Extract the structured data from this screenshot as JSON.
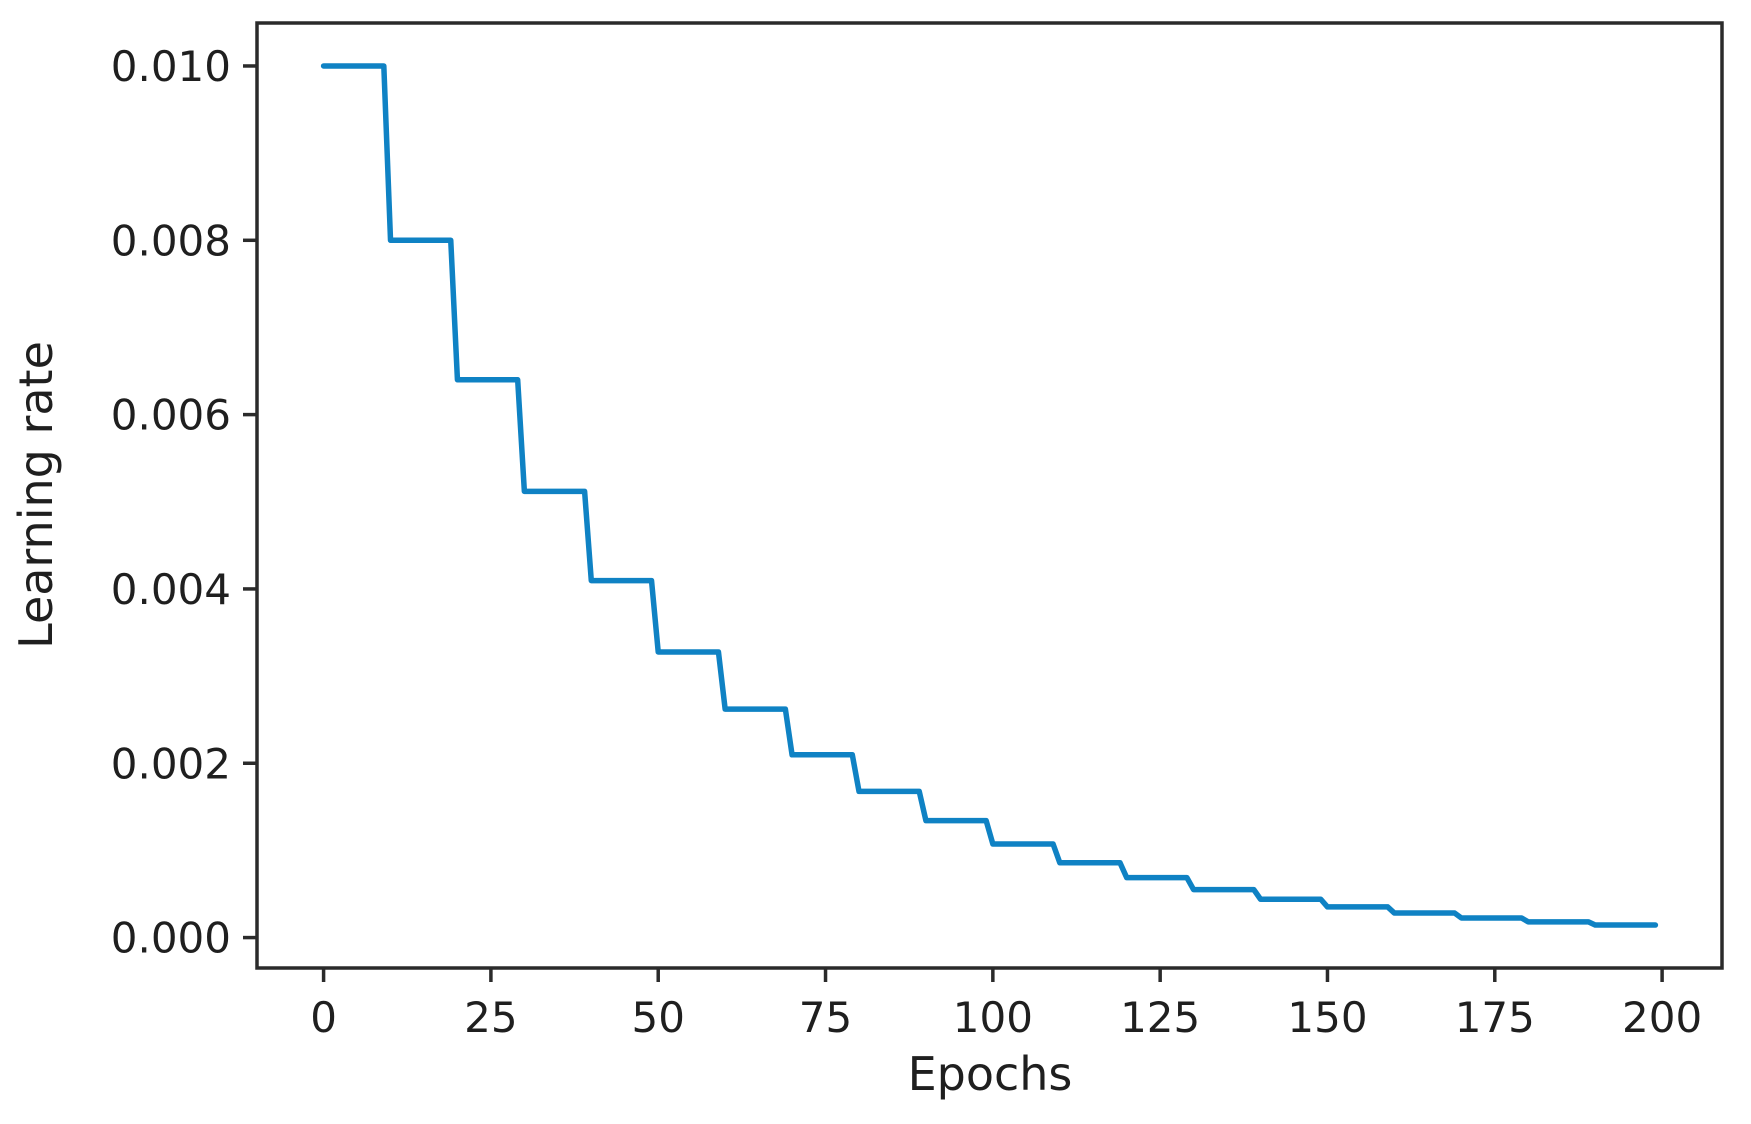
{
  "figure": {
    "background": "#ffffff"
  },
  "chart_data": {
    "type": "line",
    "title": "",
    "xlabel": "Epochs",
    "ylabel": "Learning rate",
    "x_ticks": [
      0,
      25,
      50,
      75,
      100,
      125,
      150,
      175,
      200
    ],
    "x_tick_labels": [
      "0",
      "25",
      "50",
      "75",
      "100",
      "125",
      "150",
      "175",
      "200"
    ],
    "y_ticks": [
      0.0,
      0.002,
      0.004,
      0.006,
      0.008,
      0.01
    ],
    "y_tick_labels": [
      "0.000",
      "0.002",
      "0.004",
      "0.006",
      "0.008",
      "0.010"
    ],
    "xlim": [
      -9.95,
      208.95
    ],
    "ylim": [
      -0.000349,
      0.010493
    ],
    "grid": false,
    "legend_position": "none",
    "line_color": "#0f82c4",
    "axis_color": "#2b2b2b",
    "text_color": "#1f1f1f",
    "series": [
      {
        "name": "learning rate",
        "n_epochs": 200,
        "step_every": 10,
        "initial_lr": 0.01,
        "decay_factor": 0.8,
        "step_values": [
          0.01,
          0.008,
          0.0064,
          0.00512,
          0.004096,
          0.0032768,
          0.0026214,
          0.0020972,
          0.0016777,
          0.0013422,
          0.0010737,
          0.000859,
          0.0006872,
          0.0005498,
          0.0004398,
          0.0003518,
          0.0002815,
          0.0002252,
          0.0001801,
          0.0001441
        ]
      }
    ]
  }
}
